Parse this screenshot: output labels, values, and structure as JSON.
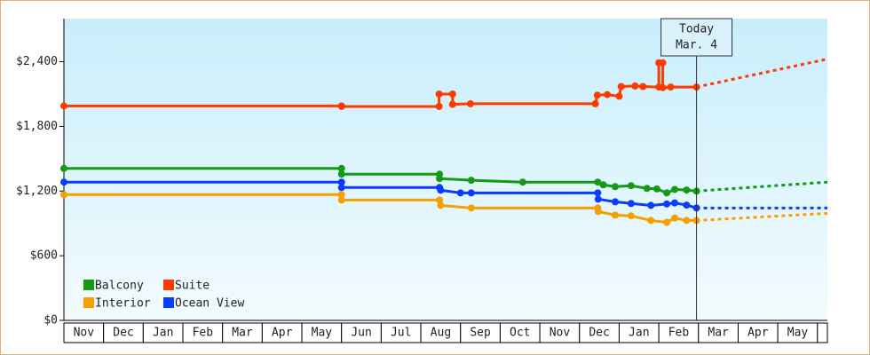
{
  "chart_data": {
    "type": "line",
    "xlim": [
      0,
      19.25
    ],
    "ylim": [
      0,
      2800
    ],
    "yticks": [
      {
        "value": 0,
        "label": "$0"
      },
      {
        "value": 600,
        "label": "$600"
      },
      {
        "value": 1200,
        "label": "$1,200"
      },
      {
        "value": 1800,
        "label": "$1,800"
      },
      {
        "value": 2400,
        "label": "$2,400"
      }
    ],
    "xticks": [
      {
        "value": 0.5,
        "label": "Nov"
      },
      {
        "value": 1.5,
        "label": "Dec"
      },
      {
        "value": 2.5,
        "label": "Jan"
      },
      {
        "value": 3.5,
        "label": "Feb"
      },
      {
        "value": 4.5,
        "label": "Mar"
      },
      {
        "value": 5.5,
        "label": "Apr"
      },
      {
        "value": 6.5,
        "label": "May"
      },
      {
        "value": 7.5,
        "label": "Jun"
      },
      {
        "value": 8.5,
        "label": "Jul"
      },
      {
        "value": 9.5,
        "label": "Aug"
      },
      {
        "value": 10.5,
        "label": "Sep"
      },
      {
        "value": 11.5,
        "label": "Oct"
      },
      {
        "value": 12.5,
        "label": "Nov"
      },
      {
        "value": 13.5,
        "label": "Dec"
      },
      {
        "value": 14.5,
        "label": "Jan"
      },
      {
        "value": 15.5,
        "label": "Feb"
      },
      {
        "value": 16.5,
        "label": "Mar"
      },
      {
        "value": 17.5,
        "label": "Apr"
      },
      {
        "value": 18.5,
        "label": "May"
      }
    ],
    "today": {
      "x": 15.95,
      "label": "Today",
      "date": "Mar. 4"
    },
    "legend": "lower left",
    "series": [
      {
        "name": "Balcony",
        "color": "#169a16",
        "x": [
          0,
          7.0,
          7.0,
          9.47,
          9.47,
          10.27,
          11.57,
          13.46,
          13.6,
          13.9,
          14.3,
          14.7,
          14.95,
          15.2,
          15.4,
          15.7,
          15.95
        ],
        "values": [
          1410,
          1410,
          1357,
          1357,
          1316,
          1300,
          1283,
          1283,
          1258,
          1241,
          1250,
          1225,
          1220,
          1183,
          1215,
          1210,
          1200
        ],
        "forecast": {
          "x": [
            15.95,
            19.25
          ],
          "values": [
            1200,
            1283
          ]
        }
      },
      {
        "name": "Suite",
        "color": "#ff3a00",
        "x": [
          0,
          7.0,
          7.0,
          9.46,
          9.46,
          9.8,
          9.8,
          10.25,
          13.4,
          13.45,
          13.7,
          14.0,
          14.05,
          14.4,
          14.6,
          15.0,
          15.0,
          15.1,
          15.1,
          15.3,
          15.95
        ],
        "values": [
          1990,
          1990,
          1985,
          1985,
          2100,
          2100,
          2005,
          2010,
          2010,
          2090,
          2095,
          2080,
          2170,
          2175,
          2170,
          2165,
          2390,
          2390,
          2160,
          2165,
          2165
        ],
        "forecast": {
          "x": [
            15.95,
            19.25
          ],
          "values": [
            2165,
            2425
          ]
        }
      },
      {
        "name": "Interior",
        "color": "#f5a000",
        "x": [
          0,
          7.0,
          7.0,
          9.47,
          9.5,
          10.27,
          13.46,
          13.47,
          13.9,
          14.3,
          14.8,
          15.2,
          15.4,
          15.7,
          15.95
        ],
        "values": [
          1167,
          1167,
          1117,
          1117,
          1067,
          1043,
          1043,
          1010,
          977,
          970,
          927,
          910,
          950,
          927,
          927
        ],
        "forecast": {
          "x": [
            15.95,
            19.25
          ],
          "values": [
            927,
            993
          ]
        }
      },
      {
        "name": "Ocean View",
        "color": "#0a3cff",
        "x": [
          0,
          7.0,
          7.0,
          9.47,
          9.5,
          10.0,
          10.27,
          13.46,
          13.47,
          13.9,
          14.3,
          14.8,
          15.2,
          15.4,
          15.7,
          15.95
        ],
        "values": [
          1283,
          1283,
          1233,
          1233,
          1208,
          1183,
          1183,
          1183,
          1125,
          1100,
          1085,
          1067,
          1080,
          1090,
          1070,
          1043
        ],
        "forecast": {
          "x": [
            15.95,
            19.25
          ],
          "values": [
            1043,
            1043
          ]
        }
      }
    ]
  }
}
